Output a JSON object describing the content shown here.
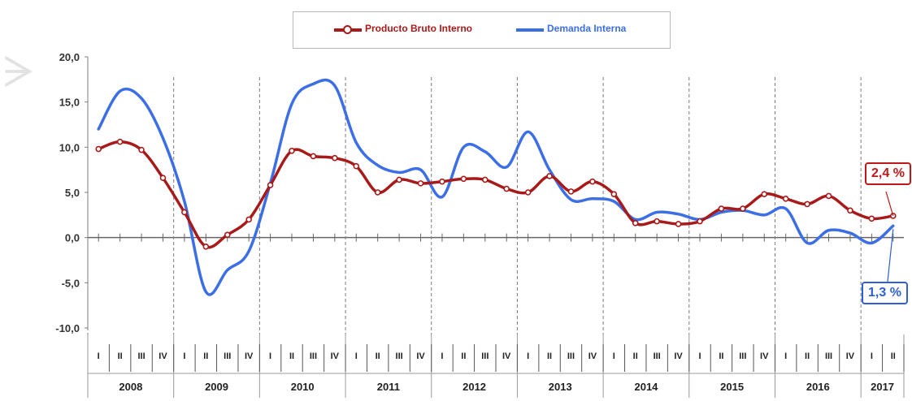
{
  "legend": {
    "pbi_label": "Producto Bruto Interno",
    "di_label": "Demanda Interna"
  },
  "colors": {
    "pbi": "#a81a1a",
    "di": "#3c6ee6",
    "axis": "#7f7f7f"
  },
  "callouts": {
    "pbi_last": "2,4 %",
    "di_last": "1,3 %"
  },
  "chart_data": {
    "type": "line",
    "title": "",
    "xlabel": "",
    "ylabel": "",
    "ylim": [
      -10,
      20
    ],
    "yticks": [
      "20,0",
      "15,0",
      "10,0",
      "5,0",
      "0,0",
      "-5,0",
      "-10,0"
    ],
    "years": [
      "2008",
      "2009",
      "2010",
      "2011",
      "2012",
      "2013",
      "2014",
      "2015",
      "2016",
      "2017"
    ],
    "quarters": [
      "I",
      "II",
      "III",
      "IV"
    ],
    "categories": [
      "2008-I",
      "2008-II",
      "2008-III",
      "2008-IV",
      "2009-I",
      "2009-II",
      "2009-III",
      "2009-IV",
      "2010-I",
      "2010-II",
      "2010-III",
      "2010-IV",
      "2011-I",
      "2011-II",
      "2011-III",
      "2011-IV",
      "2012-I",
      "2012-II",
      "2012-III",
      "2012-IV",
      "2013-I",
      "2013-II",
      "2013-III",
      "2013-IV",
      "2014-I",
      "2014-II",
      "2014-III",
      "2014-IV",
      "2015-I",
      "2015-II",
      "2015-III",
      "2015-IV",
      "2016-I",
      "2016-II",
      "2016-III",
      "2016-IV",
      "2017-I",
      "2017-II"
    ],
    "series": [
      {
        "name": "Producto Bruto Interno",
        "values": [
          9.8,
          10.6,
          9.7,
          6.6,
          2.8,
          -1.0,
          0.3,
          2.0,
          5.8,
          9.6,
          9.0,
          8.8,
          7.9,
          5.0,
          6.4,
          6.0,
          6.2,
          6.5,
          6.4,
          5.4,
          5.0,
          6.8,
          5.1,
          6.2,
          4.8,
          1.6,
          1.8,
          1.5,
          1.8,
          3.2,
          3.2,
          4.8,
          4.3,
          3.7,
          4.6,
          3.0,
          2.1,
          2.4
        ]
      },
      {
        "name": "Demanda Interna",
        "values": [
          12.0,
          16.2,
          15.4,
          11.0,
          4.0,
          -6.0,
          -3.6,
          -1.5,
          6.0,
          14.8,
          17.0,
          16.8,
          10.5,
          8.0,
          7.2,
          7.5,
          4.5,
          10.0,
          9.5,
          7.8,
          11.7,
          7.5,
          4.2,
          4.3,
          4.0,
          2.0,
          2.8,
          2.6,
          2.0,
          2.8,
          3.0,
          2.5,
          3.2,
          -0.6,
          0.8,
          0.5,
          -0.6,
          1.3
        ]
      }
    ],
    "callouts": [
      {
        "series": "Producto Bruto Interno",
        "label": "2,4 %",
        "category": "2017-II"
      },
      {
        "series": "Demanda Interna",
        "label": "1,3 %",
        "category": "2017-II"
      }
    ]
  }
}
